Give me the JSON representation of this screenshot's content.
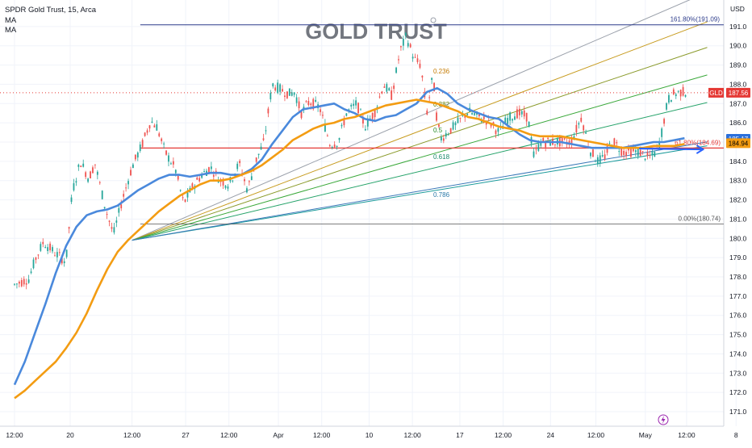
{
  "header": {
    "symbol_line": "SPDR Gold Trust, 15, Arca",
    "ma1": "MA",
    "ma2": "MA",
    "watermark": "GOLD TRUST",
    "currency": "USD"
  },
  "chart_data": {
    "type": "candlestick",
    "title": "GOLD TRUST",
    "xlabel": "",
    "ylabel": "",
    "ylim": [
      170.5,
      191.8
    ],
    "y_ticks": [
      171,
      172,
      173,
      174,
      175,
      176,
      177,
      178,
      179,
      180,
      181,
      182,
      183,
      184,
      185,
      186,
      187,
      188,
      189,
      190,
      191
    ],
    "x_ticks": [
      "12:00",
      "20",
      "12:00",
      "27",
      "12:00",
      "Apr",
      "12:00",
      "10",
      "12:00",
      "17",
      "12:00",
      "24",
      "12:00",
      "May",
      "12:00",
      "8"
    ],
    "x_tick_pos": [
      0,
      2.7,
      5.7,
      8.3,
      10.4,
      12.8,
      14.9,
      17.2,
      19.3,
      21.6,
      23.7,
      26.0,
      28.2,
      30.6,
      32.6,
      35.0
    ],
    "price_path": {
      "t": [
        0,
        0.7,
        1.0,
        1.4,
        2.0,
        2.5,
        2.8,
        3.2,
        3.6,
        3.9,
        4.4,
        4.8,
        5.2,
        5.7,
        6.2,
        6.6,
        6.9,
        7.3,
        7.8,
        8.2,
        8.6,
        9.0,
        9.5,
        10.0,
        10.4,
        10.9,
        11.3,
        11.7,
        12.1,
        12.5,
        12.8,
        13.3,
        13.6,
        13.9,
        14.3,
        14.8,
        15.3,
        15.7,
        16.1,
        16.6,
        17.0,
        17.5,
        17.9,
        18.3,
        18.7,
        19.0,
        19.4,
        19.7,
        20.0,
        20.3,
        20.5,
        20.7,
        21.0,
        21.5,
        22.0,
        22.5,
        23.0,
        23.5,
        23.9,
        24.4,
        24.9,
        25.2,
        25.5,
        26.0,
        26.5,
        27.0,
        27.5,
        27.9,
        28.3,
        28.6,
        29.0,
        29.5,
        29.9,
        30.3,
        30.7,
        31.0,
        31.3,
        31.5,
        31.7,
        32.0,
        32.3,
        32.6
      ],
      "price": [
        177.6,
        177.9,
        178.9,
        179.8,
        179.2,
        178.8,
        182.4,
        184.0,
        183.1,
        183.9,
        181.6,
        180.2,
        181.9,
        183.7,
        184.9,
        186.1,
        185.8,
        184.5,
        183.6,
        181.8,
        182.6,
        183.2,
        183.7,
        183.0,
        182.8,
        183.9,
        182.5,
        184.0,
        185.0,
        188.0,
        187.8,
        187.5,
        187.6,
        186.5,
        187.1,
        186.8,
        184.9,
        185.0,
        186.5,
        187.0,
        185.8,
        186.6,
        188.0,
        187.4,
        189.7,
        190.5,
        189.3,
        189.0,
        186.5,
        188.5,
        186.0,
        185.2,
        185.5,
        186.0,
        186.6,
        186.3,
        186.1,
        185.5,
        186.2,
        186.5,
        186.3,
        184.2,
        185.0,
        185.0,
        185.0,
        185.0,
        186.3,
        184.6,
        184.0,
        184.2,
        185.1,
        184.5,
        184.5,
        184.5,
        184.2,
        184.3,
        185.0,
        186.1,
        187.2,
        187.5,
        187.6,
        187.6
      ]
    },
    "series": [
      {
        "name": "MA",
        "color": "#4a89dc",
        "t": [
          0.0,
          0.5,
          1.0,
          1.5,
          2.0,
          2.5,
          3.0,
          3.5,
          4.0,
          4.5,
          5.0,
          5.5,
          6.0,
          6.5,
          7.0,
          7.5,
          8.0,
          8.5,
          9.0,
          9.5,
          10.0,
          10.5,
          11.0,
          11.5,
          12.0,
          12.5,
          13.0,
          13.5,
          14.0,
          14.5,
          15.0,
          15.5,
          16.0,
          16.5,
          17.0,
          17.5,
          18.0,
          18.5,
          19.0,
          19.5,
          20.0,
          20.5,
          21.0,
          21.5,
          22.0,
          22.5,
          23.0,
          23.5,
          24.0,
          24.5,
          25.0,
          25.5,
          26.0,
          26.5,
          27.0,
          27.5,
          28.0,
          28.5,
          29.0,
          29.5,
          30.0,
          30.5,
          31.0,
          31.5,
          32.0,
          32.5
        ],
        "values": [
          172.4,
          173.6,
          175.1,
          176.6,
          178.2,
          179.6,
          180.6,
          181.2,
          181.4,
          181.5,
          181.7,
          182.1,
          182.5,
          182.8,
          183.1,
          183.3,
          183.3,
          183.2,
          183.3,
          183.4,
          183.4,
          183.3,
          183.3,
          183.6,
          184.1,
          184.9,
          185.6,
          186.3,
          186.7,
          186.8,
          186.9,
          187.0,
          186.7,
          186.5,
          186.2,
          186.1,
          186.3,
          186.4,
          186.7,
          187.0,
          187.6,
          187.8,
          187.5,
          187.0,
          186.7,
          186.5,
          186.3,
          186.2,
          185.8,
          185.4,
          185.1,
          185.0,
          185.0,
          185.0,
          184.9,
          184.8,
          184.7,
          184.7,
          184.7,
          184.7,
          184.8,
          184.9,
          185.0,
          185.0,
          185.1,
          185.2
        ]
      },
      {
        "name": "MA",
        "color": "#f39c12",
        "t": [
          0.0,
          0.5,
          1.0,
          1.5,
          2.0,
          2.5,
          3.0,
          3.5,
          4.0,
          4.5,
          5.0,
          5.5,
          6.0,
          6.5,
          7.0,
          7.5,
          8.0,
          8.5,
          9.0,
          9.5,
          10.0,
          10.5,
          11.0,
          11.5,
          12.0,
          12.5,
          13.0,
          13.5,
          14.0,
          14.5,
          15.0,
          15.5,
          16.0,
          16.5,
          17.0,
          17.5,
          18.0,
          18.5,
          19.0,
          19.5,
          20.0,
          20.5,
          21.0,
          21.5,
          22.0,
          22.5,
          23.0,
          23.5,
          24.0,
          24.5,
          25.0,
          25.5,
          26.0,
          26.5,
          27.0,
          27.5,
          28.0,
          28.5,
          29.0,
          29.5,
          30.0,
          30.5,
          31.0,
          31.5,
          32.0,
          32.5
        ],
        "values": [
          171.7,
          172.1,
          172.6,
          173.1,
          173.6,
          174.3,
          175.1,
          176.1,
          177.3,
          178.4,
          179.3,
          179.9,
          180.4,
          180.9,
          181.4,
          181.8,
          182.2,
          182.5,
          182.8,
          183.0,
          183.0,
          183.1,
          183.3,
          183.5,
          183.8,
          184.2,
          184.6,
          185.1,
          185.4,
          185.7,
          185.9,
          186.0,
          186.2,
          186.3,
          186.5,
          186.7,
          186.9,
          187.0,
          187.1,
          187.2,
          187.1,
          187.0,
          186.8,
          186.6,
          186.3,
          186.2,
          186.0,
          185.8,
          185.7,
          185.6,
          185.4,
          185.3,
          185.3,
          185.3,
          185.2,
          185.1,
          185.0,
          184.9,
          184.8,
          184.7,
          184.7,
          184.7,
          184.8,
          184.8,
          184.8,
          184.9
        ]
      }
    ],
    "annotations": {
      "fib_levels": [
        {
          "label": "161.80%(191.09)",
          "price": 191.09,
          "color": "#2b3a8a"
        },
        {
          "label": "61.80%(184.69)",
          "price": 184.69,
          "color": "#e53935"
        },
        {
          "label": "0.00%(180.74)",
          "price": 180.74,
          "color": "#555555"
        }
      ],
      "fan_labels": [
        "0.236",
        "0.382",
        "0.5",
        "0.618",
        "0.786"
      ],
      "fan_label_numeric": [
        0.236,
        0.382,
        0.5,
        0.618,
        0.786
      ],
      "fan_origin": {
        "t": 5.7,
        "price": 179.9
      },
      "fan_end_prices_at_t33": [
        192.5,
        191.0,
        189.7,
        188.3,
        186.9,
        184.7,
        184.9
      ],
      "fan_colors": [
        "#9aa0aa",
        "#c79b1e",
        "#8a9a2a",
        "#3aa83a",
        "#26a36a",
        "#1a9a9a",
        "#3a78b8"
      ],
      "current_price_line": {
        "price": 187.56,
        "color": "#e53935"
      },
      "arrow": {
        "from_t": 30.3,
        "to_t": 33.4,
        "price": 184.62,
        "color": "#2962ff"
      }
    },
    "axis_badges": [
      {
        "label": "GLD",
        "value": "187.56",
        "price": 187.56,
        "color": "#e53935"
      },
      {
        "label": "",
        "value": "185.17",
        "price": 185.17,
        "color": "#2a6fdb"
      },
      {
        "label": "",
        "value": "184.94",
        "price": 184.94,
        "color": "#f39c12"
      }
    ],
    "grid": true
  }
}
